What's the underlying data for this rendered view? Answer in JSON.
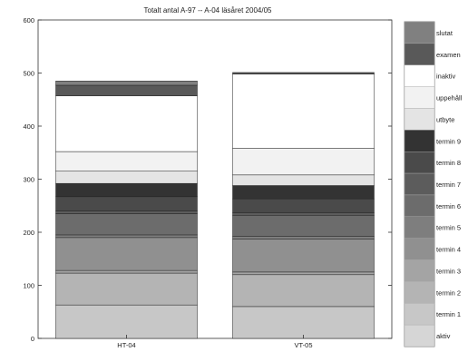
{
  "chart_data": {
    "type": "bar",
    "stacked": true,
    "title": "Totalt antal A-97 -- A-04 läsåret 2004/05",
    "xlabel": "",
    "ylabel": "",
    "ylim": [
      0,
      600
    ],
    "yticks": [
      0,
      100,
      200,
      300,
      400,
      500,
      600
    ],
    "categories": [
      "HT-04",
      "VT-05"
    ],
    "grid": false,
    "legend_position": "right",
    "series": [
      {
        "name": "aktiv",
        "color": "#d6d6d6",
        "values": [
          0,
          0
        ]
      },
      {
        "name": "termin 1",
        "color": "#c7c7c7",
        "values": [
          63,
          60
        ]
      },
      {
        "name": "termin 2",
        "color": "#b4b4b4",
        "values": [
          60,
          60
        ]
      },
      {
        "name": "termin 3",
        "color": "#a4a4a4",
        "values": [
          5,
          5
        ]
      },
      {
        "name": "termin 4",
        "color": "#909090",
        "values": [
          62,
          62
        ]
      },
      {
        "name": "termin 5",
        "color": "#7e7e7e",
        "values": [
          5,
          5
        ]
      },
      {
        "name": "termin 6",
        "color": "#6c6c6c",
        "values": [
          40,
          40
        ]
      },
      {
        "name": "termin 7",
        "color": "#5c5c5c",
        "values": [
          5,
          5
        ]
      },
      {
        "name": "termin 8",
        "color": "#4a4a4a",
        "values": [
          27,
          26
        ]
      },
      {
        "name": "termin 9",
        "color": "#333333",
        "values": [
          25,
          25
        ]
      },
      {
        "name": "utbyte",
        "color": "#e4e4e4",
        "values": [
          23,
          20
        ]
      },
      {
        "name": "uppehåll",
        "color": "#f2f2f2",
        "values": [
          37,
          50
        ]
      },
      {
        "name": "inaktiv",
        "color": "#ffffff",
        "values": [
          105,
          140
        ]
      },
      {
        "name": "examen",
        "color": "#595959",
        "values": [
          20,
          3
        ]
      },
      {
        "name": "slutat",
        "color": "#808080",
        "values": [
          8,
          0
        ]
      }
    ]
  }
}
